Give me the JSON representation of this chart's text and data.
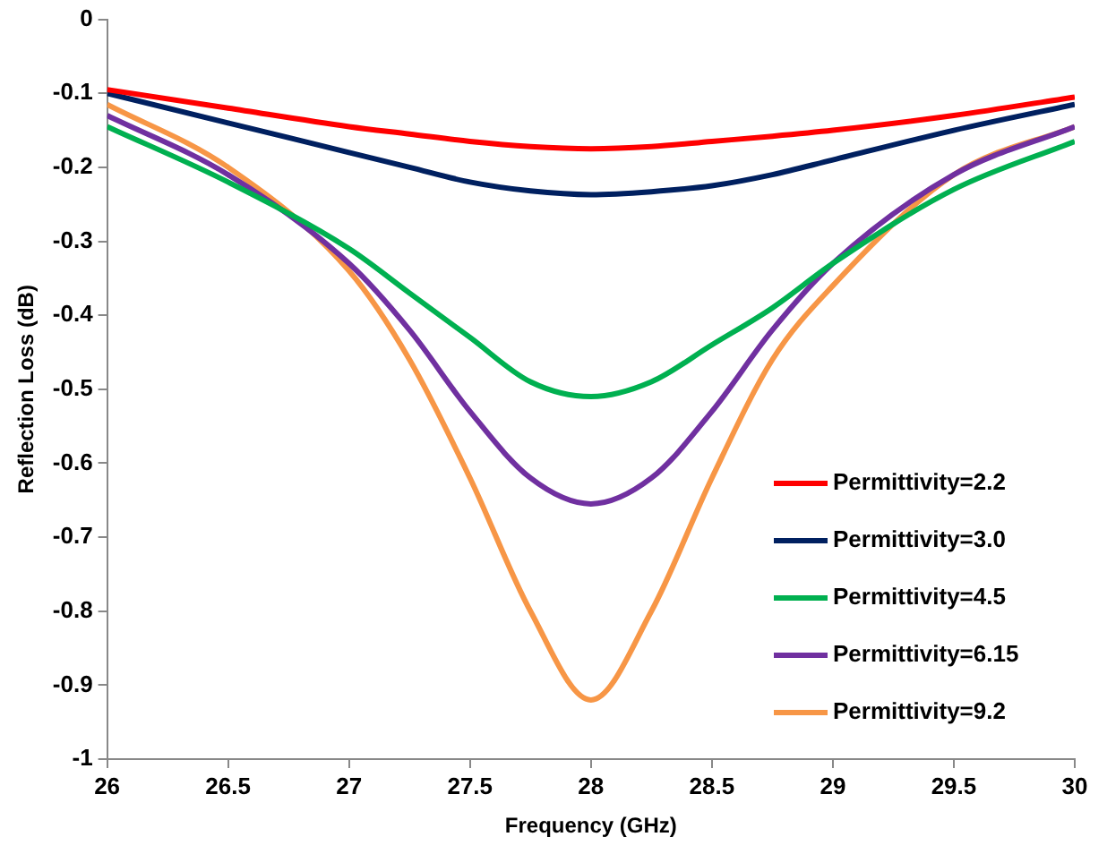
{
  "chart_data": {
    "type": "line",
    "xlabel": "Frequency (GHz)",
    "ylabel": "Reflection Loss (dB)",
    "x": [
      26,
      26.5,
      27,
      27.25,
      27.5,
      27.75,
      28,
      28.25,
      28.5,
      28.75,
      29,
      29.5,
      30
    ],
    "xlim": [
      26,
      30
    ],
    "xticks": [
      26,
      26.5,
      27,
      27.5,
      28,
      28.5,
      29,
      29.5,
      30
    ],
    "ylim": [
      -1,
      0
    ],
    "yticks": [
      -1,
      -0.9,
      -0.8,
      -0.7,
      -0.6,
      -0.5,
      -0.4,
      -0.3,
      -0.2,
      -0.1,
      0
    ],
    "grid": false,
    "legend": "right",
    "marker": "none",
    "line_style": "solid",
    "series": [
      {
        "name": "Permittivity=2.2",
        "color": "#ff0000",
        "values": [
          -0.095,
          -0.12,
          -0.145,
          -0.155,
          -0.165,
          -0.172,
          -0.175,
          -0.172,
          -0.165,
          -0.158,
          -0.15,
          -0.13,
          -0.105
        ]
      },
      {
        "name": "Permittivity=3.0",
        "color": "#002060",
        "values": [
          -0.1,
          -0.14,
          -0.18,
          -0.2,
          -0.22,
          -0.232,
          -0.237,
          -0.233,
          -0.225,
          -0.21,
          -0.19,
          -0.15,
          -0.115
        ]
      },
      {
        "name": "Permittivity=4.5",
        "color": "#00b050",
        "values": [
          -0.145,
          -0.22,
          -0.31,
          -0.37,
          -0.43,
          -0.49,
          -0.51,
          -0.49,
          -0.44,
          -0.39,
          -0.33,
          -0.23,
          -0.165
        ]
      },
      {
        "name": "Permittivity=6.15",
        "color": "#7030a0",
        "values": [
          -0.13,
          -0.21,
          -0.33,
          -0.42,
          -0.53,
          -0.62,
          -0.655,
          -0.62,
          -0.53,
          -0.42,
          -0.33,
          -0.21,
          -0.145
        ]
      },
      {
        "name": "Permittivity=9.2",
        "color": "#f79646",
        "values": [
          -0.115,
          -0.2,
          -0.34,
          -0.46,
          -0.62,
          -0.8,
          -0.92,
          -0.8,
          -0.62,
          -0.46,
          -0.36,
          -0.21,
          -0.145
        ]
      }
    ]
  }
}
